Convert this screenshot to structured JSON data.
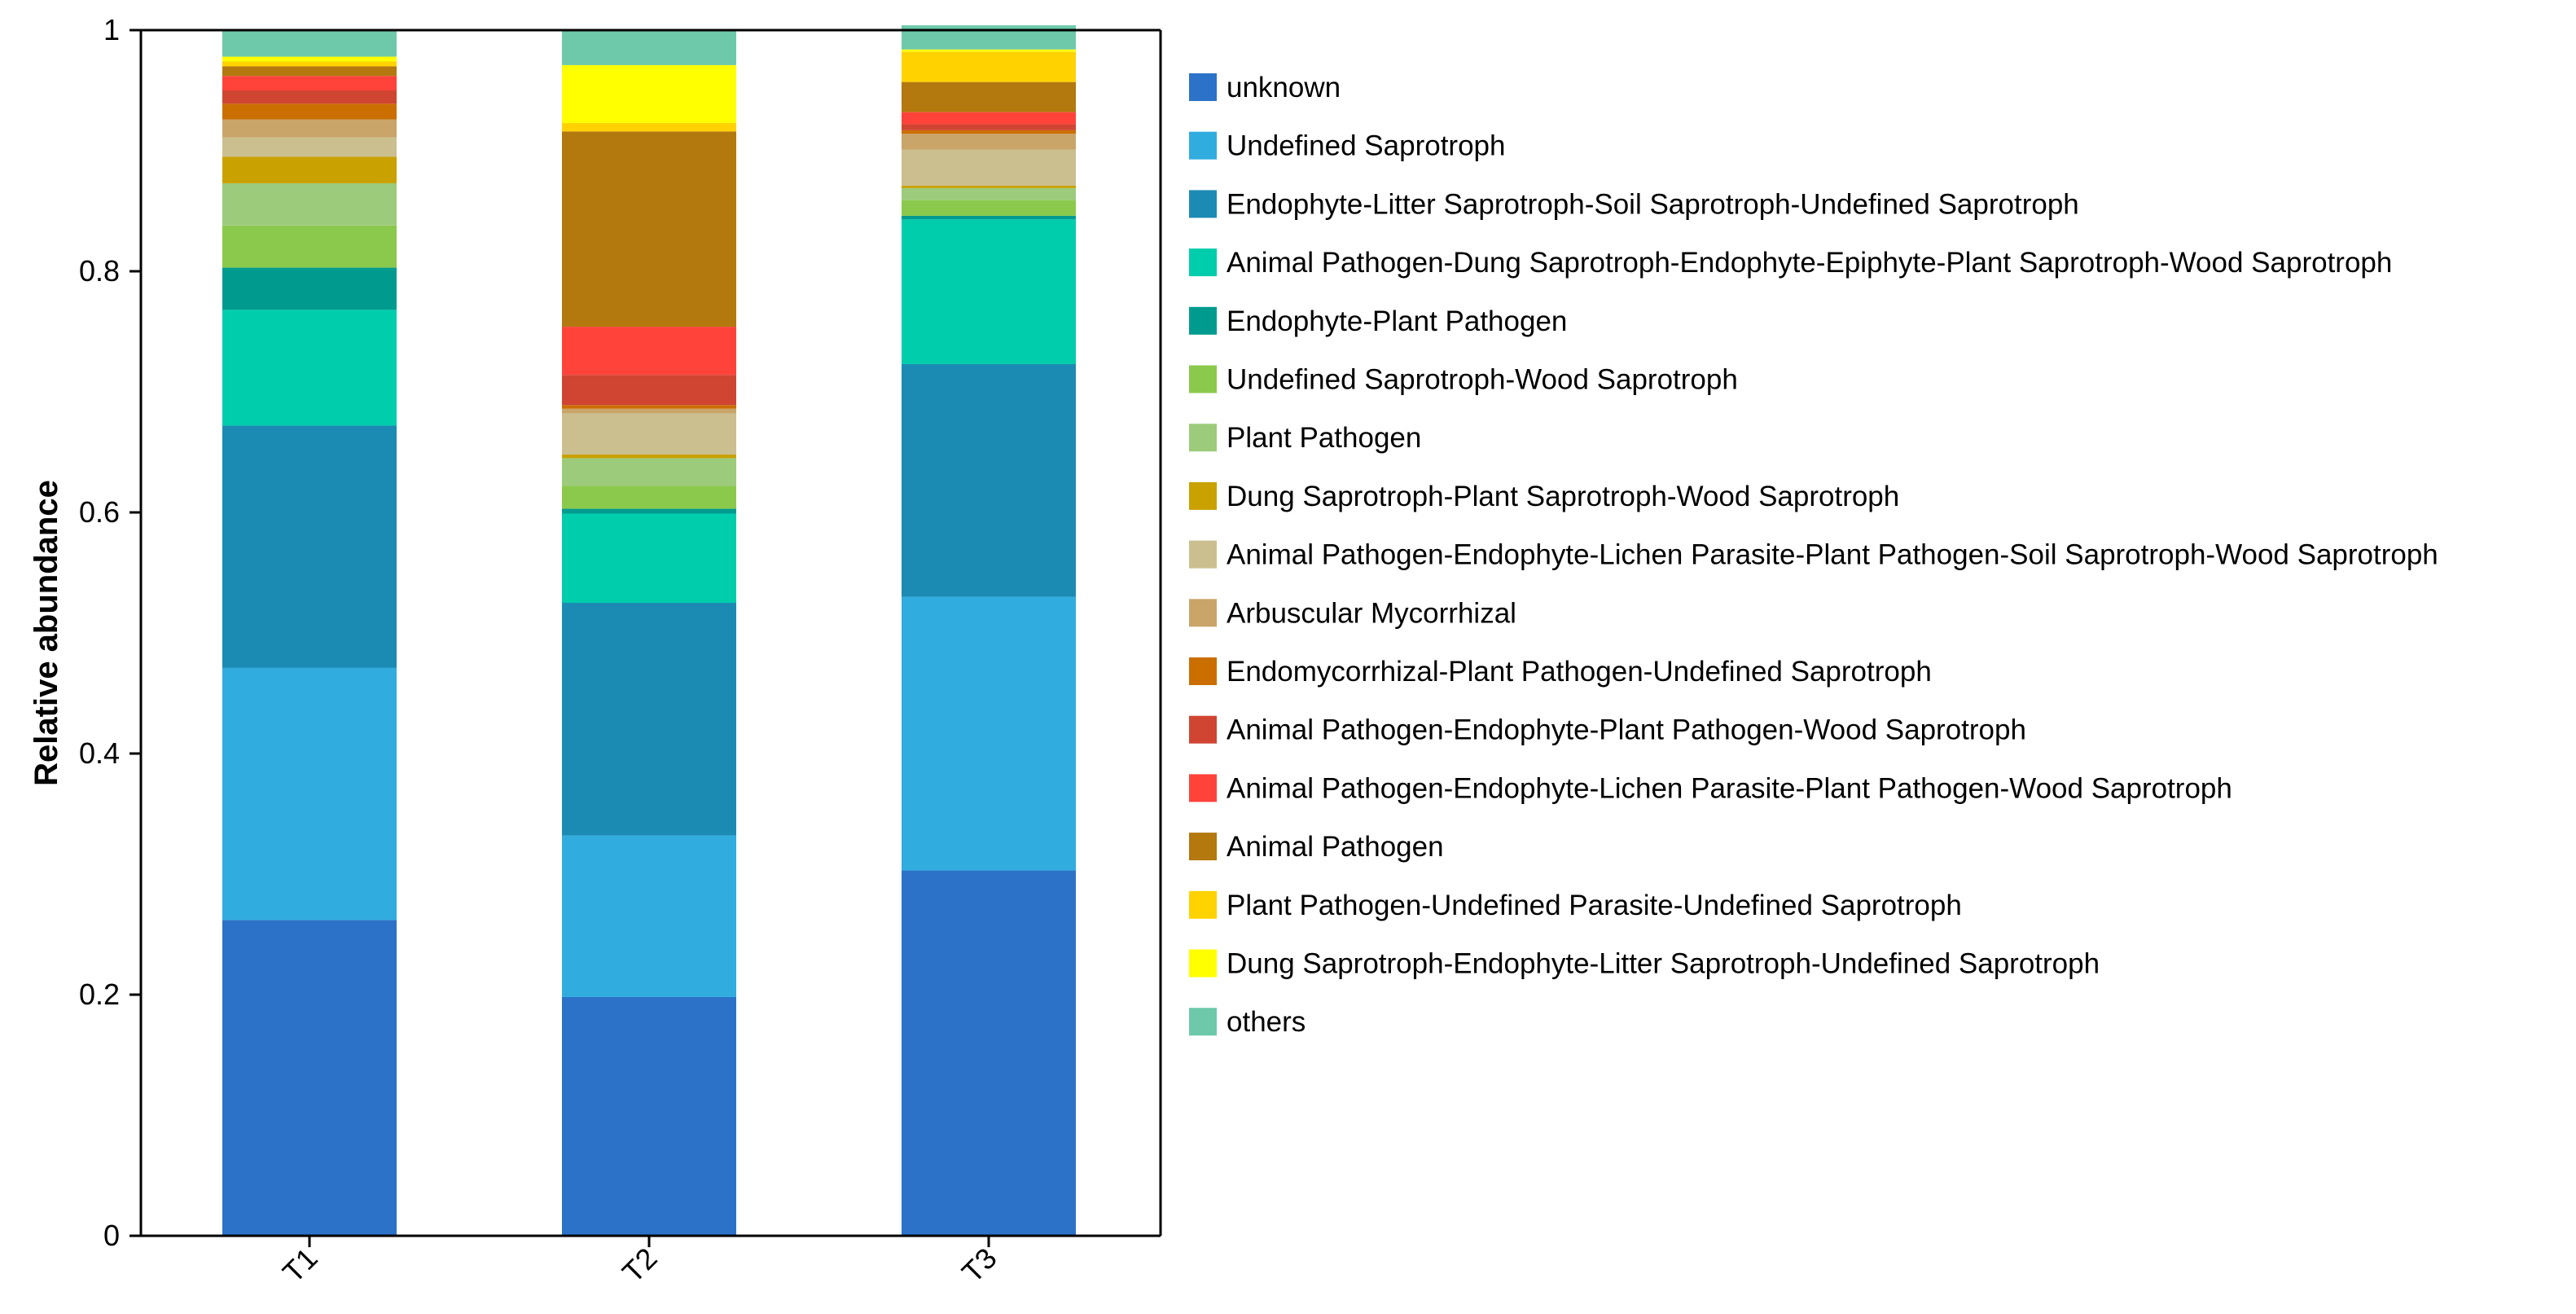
{
  "chart_data": {
    "type": "bar",
    "stacked": true,
    "title": "",
    "xlabel": "",
    "ylabel": "Relative abundance",
    "ylim": [
      0,
      1
    ],
    "yticks": [
      "0",
      "0.2",
      "0.4",
      "0.6",
      "0.8",
      "1"
    ],
    "ytick_values": [
      0,
      0.2,
      0.4,
      0.6,
      0.8,
      1
    ],
    "categories": [
      "T1",
      "T2",
      "T3"
    ],
    "legend_position": "right",
    "series": [
      {
        "name": "unknown",
        "color": "#2b72c8",
        "values": [
          0.262,
          0.198,
          0.303
        ]
      },
      {
        "name": "Undefined Saprotroph",
        "color": "#31acdf",
        "values": [
          0.209,
          0.134,
          0.227
        ]
      },
      {
        "name": "Endophyte-Litter Saprotroph-Soil Saprotroph-Undefined Saprotroph",
        "color": "#1b8bb4",
        "values": [
          0.201,
          0.193,
          0.193
        ]
      },
      {
        "name": "Animal Pathogen-Dung Saprotroph-Endophyte-Epiphyte-Plant Saprotroph-Wood Saprotroph",
        "color": "#00cdac",
        "values": [
          0.096,
          0.074,
          0.12
        ]
      },
      {
        "name": "Endophyte-Plant Pathogen",
        "color": "#009b8f",
        "values": [
          0.035,
          0.004,
          0.003
        ]
      },
      {
        "name": "Undefined Saprotroph-Wood Saprotroph",
        "color": "#8bc94c",
        "values": [
          0.035,
          0.019,
          0.013
        ]
      },
      {
        "name": "Plant Pathogen",
        "color": "#9ccb7b",
        "values": [
          0.035,
          0.023,
          0.01
        ]
      },
      {
        "name": "Dung Saprotroph-Plant Saprotroph-Wood Saprotroph",
        "color": "#c9a100",
        "values": [
          0.022,
          0.003,
          0.002
        ]
      },
      {
        "name": "Animal Pathogen-Endophyte-Lichen Parasite-Plant Pathogen-Soil Saprotroph-Wood Saprotroph",
        "color": "#cbbf8f",
        "values": [
          0.016,
          0.034,
          0.03
        ]
      },
      {
        "name": "Arbuscular Mycorrhizal",
        "color": "#c9a56a",
        "values": [
          0.015,
          0.004,
          0.013
        ]
      },
      {
        "name": "Endomycorrhizal-Plant Pathogen-Undefined Saprotroph",
        "color": "#cb6e00",
        "values": [
          0.013,
          0.003,
          0.003
        ]
      },
      {
        "name": "Animal Pathogen-Endophyte-Plant Pathogen-Wood Saprotroph",
        "color": "#cf4532",
        "values": [
          0.011,
          0.025,
          0.005
        ]
      },
      {
        "name": "Animal Pathogen-Endophyte-Lichen Parasite-Plant Pathogen-Wood Saprotroph",
        "color": "#ff433b",
        "values": [
          0.012,
          0.04,
          0.01
        ]
      },
      {
        "name": "Animal Pathogen",
        "color": "#b3780e",
        "values": [
          0.008,
          0.162,
          0.025
        ]
      },
      {
        "name": "Plant Pathogen-Undefined Parasite-Undefined Saprotroph",
        "color": "#ffd200",
        "values": [
          0.004,
          0.007,
          0.025
        ]
      },
      {
        "name": "Dung Saprotroph-Endophyte-Litter Saprotroph-Undefined Saprotroph",
        "color": "#ffff00",
        "values": [
          0.004,
          0.048,
          0.002
        ]
      },
      {
        "name": "others",
        "color": "#6dc9a9",
        "values": [
          0.022,
          0.029,
          0.02
        ]
      }
    ]
  }
}
